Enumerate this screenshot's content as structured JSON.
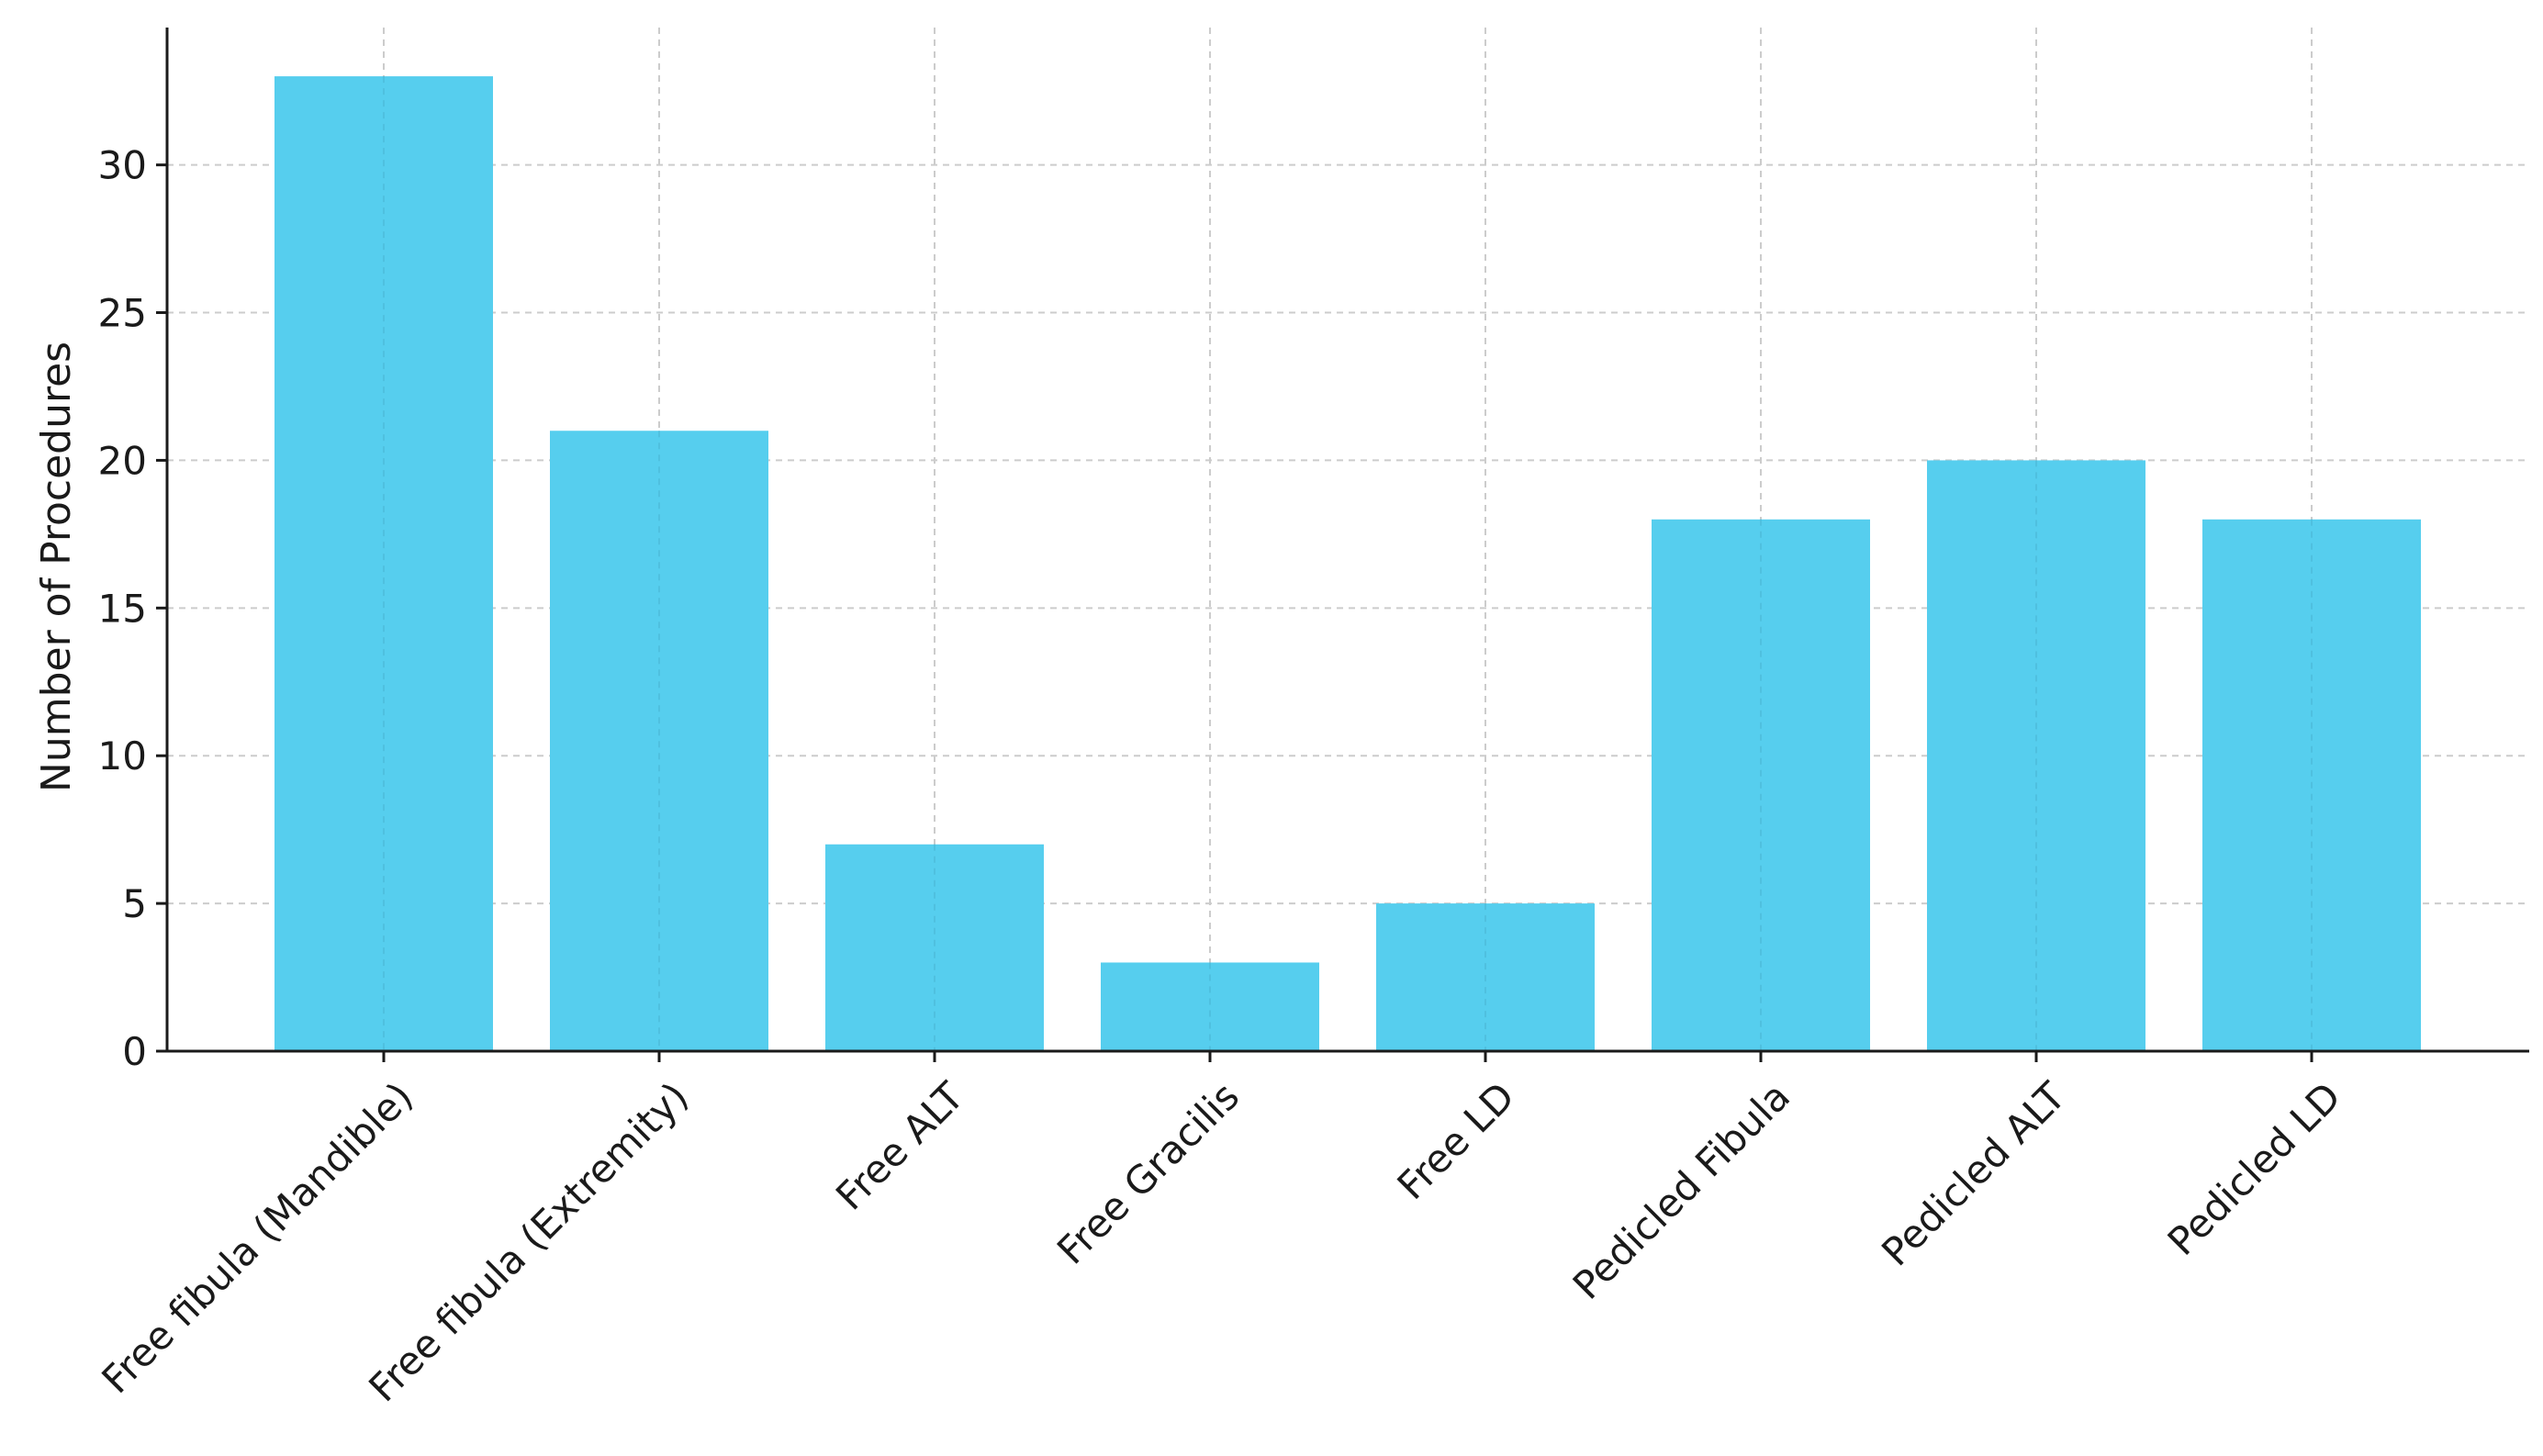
{
  "chart_data": {
    "type": "bar",
    "title": "",
    "xlabel": "",
    "ylabel": "Number of Procedures",
    "categories": [
      "Free fibula (Mandible)",
      "Free fibula (Extremity)",
      "Free ALT",
      "Free Gracilis",
      "Free LD",
      "Pedicled Fibula",
      "Pedicled ALT",
      "Pedicled LD"
    ],
    "values": [
      33,
      21,
      7,
      3,
      5,
      18,
      20,
      18
    ],
    "yticks": [
      0,
      5,
      10,
      15,
      20,
      25,
      30
    ],
    "ylim": [
      0,
      34.65
    ],
    "grid": true,
    "grid_style": "dashed",
    "bar_color": "#56ceee",
    "axis_color": "#1a1a1a",
    "grid_color": "#cccccc"
  }
}
